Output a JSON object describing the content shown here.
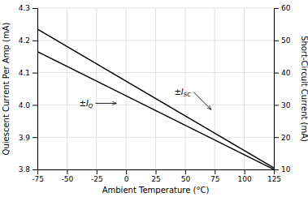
{
  "chart_data": {
    "type": "line",
    "xlabel": "Ambient Temperature (°C)",
    "ylabel": "Quiescent Current Per Amp (mA)",
    "y2label": "Short-Circuit Current (mA)",
    "x": [
      -75,
      125
    ],
    "xlim": [
      -75,
      125
    ],
    "ylim": [
      3.8,
      4.3
    ],
    "y2lim": [
      10,
      60
    ],
    "xticks": [
      -75,
      -50,
      -25,
      0,
      25,
      50,
      75,
      100,
      125
    ],
    "yticks": [
      3.8,
      3.9,
      {
        "value": 4.0,
        "label": "4.0"
      },
      4.1,
      4.2,
      4.3
    ],
    "y2ticks": [
      10,
      20,
      30,
      40,
      50,
      60
    ],
    "grid": true,
    "series": [
      {
        "values": [
          4.235,
          3.805
        ],
        "color": "#000000"
      },
      {
        "values": [
          46.5,
          10.0
        ],
        "color": "#000000",
        "axis": "y2"
      }
    ],
    "annotations": [
      {
        "text": "±I",
        "subscript": "Q",
        "x": -8,
        "y": 4.005,
        "text_x": -28,
        "text_y": 4.005
      },
      {
        "text": "±I",
        "subscript": "SC",
        "x": 72,
        "y": 28.5,
        "text_x": 55,
        "text_y": 34.0,
        "axis": "y2"
      }
    ]
  }
}
